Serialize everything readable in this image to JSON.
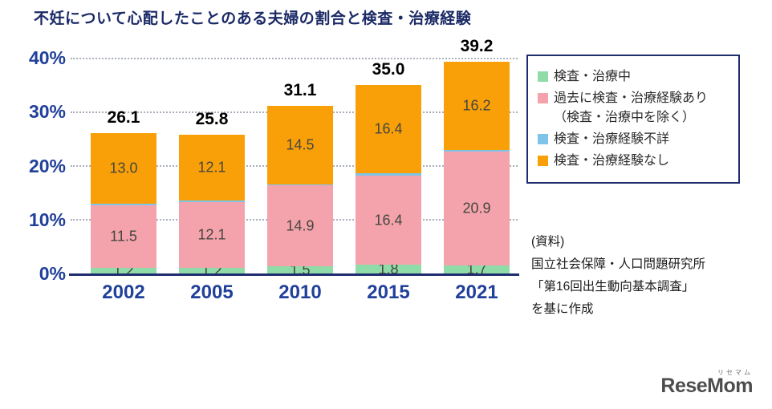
{
  "title": "不妊について心配したことのある夫婦の割合と検査・治療経験",
  "chart_data": {
    "type": "bar",
    "stacked": true,
    "title": "不妊について心配したことのある夫婦の割合と検査・治療経験",
    "categories": [
      "2002",
      "2005",
      "2010",
      "2015",
      "2021"
    ],
    "series": [
      {
        "name": "検査・治療中",
        "color": "#8fdca8",
        "values": [
          1.2,
          1.2,
          1.5,
          1.8,
          1.7
        ],
        "show_labels": true
      },
      {
        "name": "過去に検査・治療経験あり（検査・治療中を除く）",
        "color": "#f4a3ac",
        "values": [
          11.5,
          12.1,
          14.9,
          16.4,
          20.9
        ],
        "show_labels": true
      },
      {
        "name": "検査・治療経験不詳",
        "color": "#7ec4e8",
        "values": [
          0.4,
          0.4,
          0.2,
          0.4,
          0.4
        ],
        "show_labels": false
      },
      {
        "name": "検査・治療経験なし",
        "color": "#f9a008",
        "values": [
          13.0,
          12.1,
          14.5,
          16.4,
          16.2
        ],
        "show_labels": true
      }
    ],
    "totals": [
      "26.1",
      "25.8",
      "31.1",
      "35.0",
      "39.2"
    ],
    "ylabel_ticks": [
      "0%",
      "10%",
      "20%",
      "30%",
      "40%"
    ],
    "ylim": [
      0,
      40
    ],
    "grid": "dotted horizontal",
    "legend_position": "top-right"
  },
  "legend": {
    "items": [
      {
        "label": "検査・治療中",
        "label2": "",
        "color": "#8fdca8"
      },
      {
        "label": "過去に検査・治療経験あり",
        "label2": "（検査・治療中を除く）",
        "color": "#f4a3ac"
      },
      {
        "label": "検査・治療経験不詳",
        "label2": "",
        "color": "#7ec4e8"
      },
      {
        "label": "検査・治療経験なし",
        "label2": "",
        "color": "#f9a008"
      }
    ]
  },
  "source": {
    "lines": [
      "(資料)",
      "国立社会保障・人口問題研究所",
      "「第16回出生動向基本調査」",
      "を基に作成"
    ]
  },
  "logo": {
    "text": "ReseMom",
    "ruby": "リセマム"
  }
}
